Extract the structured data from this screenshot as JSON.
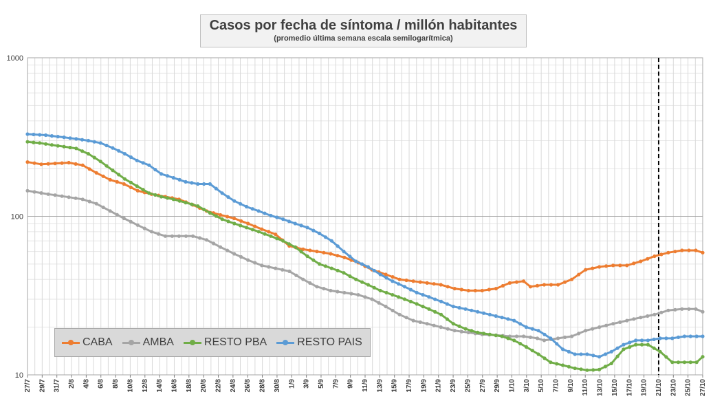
{
  "chart_data": {
    "type": "line",
    "title": "Casos por fecha de síntoma / millón habitantes",
    "subtitle": "(promedio última semana escala semilogarítmica)",
    "y_scale": "log",
    "ylim": [
      10,
      1000
    ],
    "y_ticks": [
      "10",
      "100",
      "1000"
    ],
    "x_tick_labels": [
      "27/7",
      "29/7",
      "31/7",
      "2/8",
      "4/8",
      "6/8",
      "8/8",
      "10/8",
      "12/8",
      "14/8",
      "16/8",
      "18/8",
      "20/8",
      "22/8",
      "24/8",
      "26/8",
      "28/8",
      "30/8",
      "1/9",
      "3/9",
      "5/9",
      "7/9",
      "9/9",
      "11/9",
      "13/9",
      "15/9",
      "17/9",
      "19/9",
      "21/9",
      "23/9",
      "25/9",
      "27/9",
      "29/9",
      "1/10",
      "3/10",
      "5/10",
      "7/10",
      "9/10",
      "11/10",
      "13/10",
      "15/10",
      "17/10",
      "19/10",
      "21/10",
      "23/10",
      "25/10",
      "27/10"
    ],
    "x_start": "27/7",
    "x_end": "27/10",
    "marker_line_at": "21/10",
    "grid": true,
    "legend_position": "bottom-left",
    "series": [
      {
        "name": "CABA",
        "color": "#ed7d31",
        "keypoints": [
          [
            0,
            220
          ],
          [
            2,
            213
          ],
          [
            6,
            218
          ],
          [
            8,
            210
          ],
          [
            10,
            188
          ],
          [
            12,
            170
          ],
          [
            14,
            160
          ],
          [
            16,
            145
          ],
          [
            18,
            138
          ],
          [
            20,
            133
          ],
          [
            22,
            128
          ],
          [
            24,
            118
          ],
          [
            26,
            108
          ],
          [
            28,
            102
          ],
          [
            30,
            97
          ],
          [
            32,
            90
          ],
          [
            34,
            83
          ],
          [
            36,
            77
          ],
          [
            38,
            65
          ],
          [
            40,
            62
          ],
          [
            42,
            60
          ],
          [
            44,
            58
          ],
          [
            46,
            55
          ],
          [
            48,
            51
          ],
          [
            50,
            46
          ],
          [
            52,
            43
          ],
          [
            54,
            40
          ],
          [
            56,
            39
          ],
          [
            58,
            38
          ],
          [
            60,
            37
          ],
          [
            62,
            35
          ],
          [
            64,
            34
          ],
          [
            66,
            34
          ],
          [
            68,
            35
          ],
          [
            70,
            38
          ],
          [
            72,
            39
          ],
          [
            73,
            36
          ],
          [
            75,
            37
          ],
          [
            77,
            37
          ],
          [
            79,
            40
          ],
          [
            81,
            46
          ],
          [
            83,
            48
          ],
          [
            85,
            49
          ],
          [
            87,
            49
          ],
          [
            89,
            52
          ],
          [
            91,
            56
          ],
          [
            93,
            59
          ],
          [
            95,
            61
          ],
          [
            97,
            61
          ],
          [
            98,
            59
          ]
        ]
      },
      {
        "name": "AMBA",
        "color": "#a5a5a5",
        "keypoints": [
          [
            0,
            145
          ],
          [
            3,
            138
          ],
          [
            6,
            132
          ],
          [
            8,
            128
          ],
          [
            10,
            120
          ],
          [
            12,
            108
          ],
          [
            14,
            97
          ],
          [
            16,
            88
          ],
          [
            18,
            80
          ],
          [
            20,
            75
          ],
          [
            24,
            75
          ],
          [
            26,
            71
          ],
          [
            28,
            64
          ],
          [
            30,
            58
          ],
          [
            32,
            53
          ],
          [
            34,
            49
          ],
          [
            36,
            47
          ],
          [
            38,
            45
          ],
          [
            40,
            40
          ],
          [
            42,
            36
          ],
          [
            44,
            34
          ],
          [
            46,
            33
          ],
          [
            48,
            32
          ],
          [
            50,
            30
          ],
          [
            52,
            27
          ],
          [
            54,
            24
          ],
          [
            56,
            22
          ],
          [
            58,
            21
          ],
          [
            60,
            20
          ],
          [
            62,
            19
          ],
          [
            64,
            18.5
          ],
          [
            66,
            18
          ],
          [
            68,
            17.8
          ],
          [
            70,
            17.5
          ],
          [
            72,
            17.5
          ],
          [
            74,
            17
          ],
          [
            75,
            16.5
          ],
          [
            77,
            17
          ],
          [
            79,
            17.5
          ],
          [
            81,
            19
          ],
          [
            83,
            20
          ],
          [
            85,
            21
          ],
          [
            87,
            22
          ],
          [
            89,
            23
          ],
          [
            91,
            24
          ],
          [
            93,
            25.5
          ],
          [
            95,
            26
          ],
          [
            97,
            26
          ],
          [
            98,
            25
          ]
        ]
      },
      {
        "name": "RESTO PBA",
        "color": "#70ad47",
        "keypoints": [
          [
            0,
            295
          ],
          [
            2,
            290
          ],
          [
            4,
            282
          ],
          [
            6,
            275
          ],
          [
            8,
            268
          ],
          [
            10,
            248
          ],
          [
            12,
            222
          ],
          [
            14,
            195
          ],
          [
            16,
            172
          ],
          [
            18,
            155
          ],
          [
            20,
            140
          ],
          [
            22,
            133
          ],
          [
            24,
            128
          ],
          [
            26,
            122
          ],
          [
            28,
            116
          ],
          [
            30,
            105
          ],
          [
            32,
            96
          ],
          [
            34,
            90
          ],
          [
            36,
            85
          ],
          [
            38,
            80
          ],
          [
            40,
            75
          ],
          [
            42,
            70
          ],
          [
            44,
            64
          ],
          [
            46,
            56
          ],
          [
            48,
            50
          ],
          [
            50,
            47
          ],
          [
            52,
            44
          ],
          [
            54,
            40
          ],
          [
            56,
            37
          ],
          [
            58,
            34
          ],
          [
            60,
            32
          ],
          [
            62,
            30
          ],
          [
            64,
            28
          ],
          [
            66,
            26
          ],
          [
            68,
            24
          ],
          [
            70,
            21
          ],
          [
            72,
            19.5
          ],
          [
            74,
            18.5
          ],
          [
            76,
            18
          ],
          [
            78,
            17.5
          ],
          [
            80,
            16.5
          ],
          [
            82,
            15
          ],
          [
            84,
            13.5
          ],
          [
            86,
            12
          ],
          [
            88,
            11.5
          ],
          [
            90,
            11
          ],
          [
            92,
            10.7
          ],
          [
            94,
            10.8
          ],
          [
            96,
            11.8
          ],
          [
            98,
            14.5
          ],
          [
            100,
            15.5
          ],
          [
            102,
            15.5
          ],
          [
            104,
            14
          ],
          [
            106,
            12
          ],
          [
            108,
            12
          ],
          [
            110,
            12
          ],
          [
            111,
            13
          ]
        ]
      },
      {
        "name": "RESTO PAIS",
        "color": "#5b9bd5",
        "keypoints": [
          [
            0,
            330
          ],
          [
            3,
            325
          ],
          [
            6,
            315
          ],
          [
            8,
            308
          ],
          [
            10,
            300
          ],
          [
            12,
            290
          ],
          [
            14,
            270
          ],
          [
            16,
            248
          ],
          [
            18,
            225
          ],
          [
            20,
            210
          ],
          [
            22,
            185
          ],
          [
            24,
            175
          ],
          [
            26,
            165
          ],
          [
            28,
            160
          ],
          [
            30,
            160
          ],
          [
            32,
            140
          ],
          [
            34,
            125
          ],
          [
            36,
            115
          ],
          [
            38,
            108
          ],
          [
            40,
            101
          ],
          [
            42,
            96
          ],
          [
            44,
            90
          ],
          [
            46,
            85
          ],
          [
            48,
            78
          ],
          [
            50,
            70
          ],
          [
            52,
            60
          ],
          [
            54,
            52
          ],
          [
            56,
            48
          ],
          [
            58,
            43
          ],
          [
            60,
            39
          ],
          [
            62,
            36
          ],
          [
            64,
            33
          ],
          [
            66,
            31
          ],
          [
            68,
            29
          ],
          [
            70,
            27
          ],
          [
            72,
            26
          ],
          [
            74,
            25
          ],
          [
            76,
            24
          ],
          [
            78,
            23
          ],
          [
            80,
            22
          ],
          [
            82,
            20
          ],
          [
            84,
            19
          ],
          [
            86,
            17
          ],
          [
            88,
            14.5
          ],
          [
            90,
            13.5
          ],
          [
            92,
            13.5
          ],
          [
            94,
            13
          ],
          [
            96,
            14
          ],
          [
            98,
            15.5
          ],
          [
            100,
            16.5
          ],
          [
            102,
            16.5
          ],
          [
            104,
            17
          ],
          [
            106,
            17
          ],
          [
            108,
            17.5
          ],
          [
            110,
            17.5
          ],
          [
            111,
            17.5
          ]
        ]
      }
    ]
  }
}
